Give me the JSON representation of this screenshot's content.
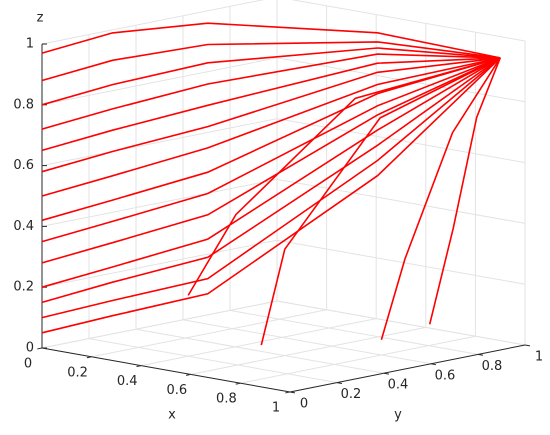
{
  "chart_data": {
    "type": "line3d",
    "color": "#ff0000",
    "grid": true,
    "xlabel": "x",
    "ylabel": "y",
    "zlabel": "z",
    "xlim": [
      0,
      1
    ],
    "ylim": [
      0,
      1
    ],
    "zlim": [
      0,
      1
    ],
    "xticks": [
      0,
      0.2,
      0.4,
      0.6,
      0.8,
      1
    ],
    "yticks": [
      0,
      0.2,
      0.4,
      0.6,
      0.8,
      1
    ],
    "zticks": [
      0,
      0.2,
      0.4,
      0.6,
      0.8,
      1
    ],
    "series": [
      {
        "x": [
          0,
          0,
          0.1,
          0.5,
          0.9
        ],
        "y": [
          0,
          0.3,
          0.6,
          0.9,
          1
        ],
        "z": [
          0.05,
          0.06,
          0.1,
          0.5,
          0.93
        ]
      },
      {
        "x": [
          0,
          0,
          0.1,
          0.5,
          0.9
        ],
        "y": [
          0,
          0.3,
          0.6,
          0.9,
          1
        ],
        "z": [
          0.1,
          0.11,
          0.15,
          0.55,
          0.93
        ]
      },
      {
        "x": [
          0,
          0,
          0.1,
          0.5,
          0.9
        ],
        "y": [
          0,
          0.3,
          0.6,
          0.9,
          1
        ],
        "z": [
          0.15,
          0.17,
          0.22,
          0.6,
          0.93
        ]
      },
      {
        "x": [
          0,
          0,
          0.1,
          0.5,
          0.9
        ],
        "y": [
          0,
          0.3,
          0.6,
          0.9,
          1
        ],
        "z": [
          0.2,
          0.22,
          0.28,
          0.65,
          0.93
        ]
      },
      {
        "x": [
          0,
          0,
          0.1,
          0.5,
          0.9
        ],
        "y": [
          0,
          0.3,
          0.6,
          0.9,
          1
        ],
        "z": [
          0.28,
          0.3,
          0.36,
          0.7,
          0.93
        ]
      },
      {
        "x": [
          0,
          0,
          0.1,
          0.5,
          0.9
        ],
        "y": [
          0,
          0.3,
          0.6,
          0.9,
          1
        ],
        "z": [
          0.35,
          0.37,
          0.43,
          0.73,
          0.93
        ]
      },
      {
        "x": [
          0,
          0,
          0.1,
          0.5,
          0.9
        ],
        "y": [
          0,
          0.3,
          0.6,
          0.9,
          1
        ],
        "z": [
          0.42,
          0.44,
          0.5,
          0.77,
          0.93
        ]
      },
      {
        "x": [
          0,
          0,
          0.1,
          0.5,
          0.9
        ],
        "y": [
          0,
          0.3,
          0.6,
          0.9,
          1
        ],
        "z": [
          0.5,
          0.52,
          0.58,
          0.8,
          0.93
        ]
      },
      {
        "x": [
          0,
          0,
          0.1,
          0.5,
          0.9
        ],
        "y": [
          0,
          0.3,
          0.6,
          0.9,
          1
        ],
        "z": [
          0.58,
          0.6,
          0.65,
          0.84,
          0.93
        ]
      },
      {
        "x": [
          0,
          0,
          0.1,
          0.5,
          0.9
        ],
        "y": [
          0,
          0.3,
          0.6,
          0.9,
          1
        ],
        "z": [
          0.65,
          0.67,
          0.72,
          0.87,
          0.93
        ]
      },
      {
        "x": [
          0,
          0,
          0.1,
          0.5,
          0.9
        ],
        "y": [
          0,
          0.3,
          0.6,
          0.9,
          1
        ],
        "z": [
          0.72,
          0.74,
          0.79,
          0.9,
          0.93
        ]
      },
      {
        "x": [
          0,
          0,
          0.1,
          0.5,
          0.9
        ],
        "y": [
          0,
          0.3,
          0.6,
          0.9,
          1
        ],
        "z": [
          0.8,
          0.82,
          0.86,
          0.92,
          0.93
        ]
      },
      {
        "x": [
          0,
          0,
          0.1,
          0.5,
          0.9
        ],
        "y": [
          0,
          0.3,
          0.6,
          0.9,
          1
        ],
        "z": [
          0.88,
          0.9,
          0.92,
          0.94,
          0.93
        ]
      },
      {
        "x": [
          0,
          0,
          0.1,
          0.5,
          0.9
        ],
        "y": [
          0,
          0.3,
          0.6,
          0.9,
          1
        ],
        "z": [
          0.97,
          0.99,
          0.99,
          0.97,
          0.93
        ]
      },
      {
        "x": [
          0.6,
          0.6,
          0.7,
          0.9
        ],
        "y": [
          0.3,
          0.4,
          0.7,
          1
        ],
        "z": [
          0.05,
          0.35,
          0.75,
          0.93
        ]
      },
      {
        "x": [
          0.8,
          0.8,
          0.85,
          0.9
        ],
        "y": [
          0.6,
          0.7,
          0.85,
          1
        ],
        "z": [
          0.05,
          0.3,
          0.7,
          0.93
        ]
      },
      {
        "x": [
          0.4,
          0.45,
          0.6,
          0.9
        ],
        "y": [
          0.2,
          0.35,
          0.7,
          1
        ],
        "z": [
          0.2,
          0.45,
          0.8,
          0.93
        ]
      },
      {
        "x": [
          0.9,
          0.9,
          0.9,
          0.9
        ],
        "y": [
          0.7,
          0.8,
          0.9,
          1
        ],
        "z": [
          0.1,
          0.4,
          0.75,
          0.93
        ]
      }
    ]
  }
}
